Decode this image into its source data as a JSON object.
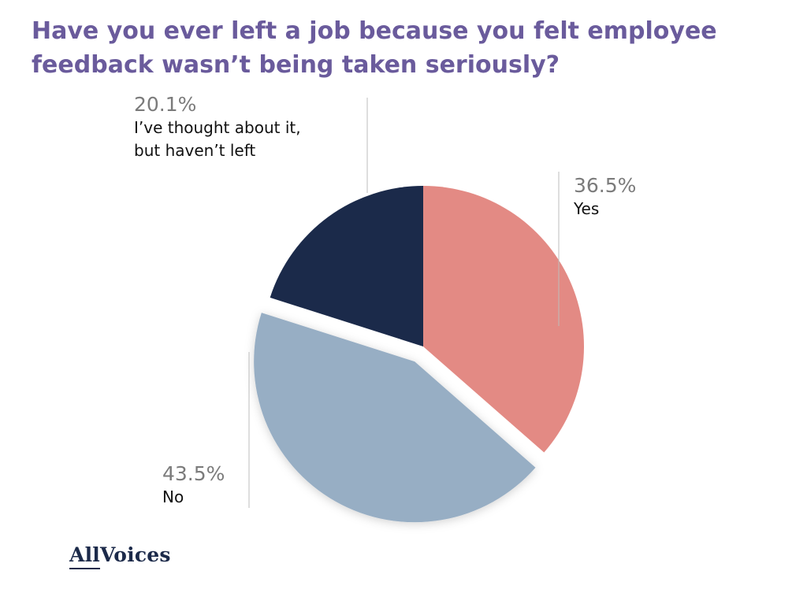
{
  "title": "Have you ever left a job because you felt employee feedback wasn’t being taken seriously?",
  "logo": {
    "part_a": "All",
    "part_b": "Voices"
  },
  "chart_data": {
    "type": "pie",
    "title": "Have you ever left a job because you felt employee feedback wasn’t being taken seriously?",
    "slices": [
      {
        "label": "Yes",
        "label_lines": [
          "Yes"
        ],
        "value": 36.5,
        "display": "36.5%",
        "color": "#e38a84",
        "exploded": false
      },
      {
        "label": "No",
        "label_lines": [
          "No"
        ],
        "value": 43.5,
        "display": "43.5%",
        "color": "#97aec4",
        "exploded": true
      },
      {
        "label": "I’ve thought about it, but haven’t left",
        "label_lines": [
          "I’ve thought about it,",
          "but haven’t left"
        ],
        "value": 20.1,
        "display": "20.1%",
        "color": "#1b2a4a",
        "exploded": false
      }
    ],
    "start_angle": "12 o'clock",
    "direction": "clockwise",
    "legend": "none"
  }
}
